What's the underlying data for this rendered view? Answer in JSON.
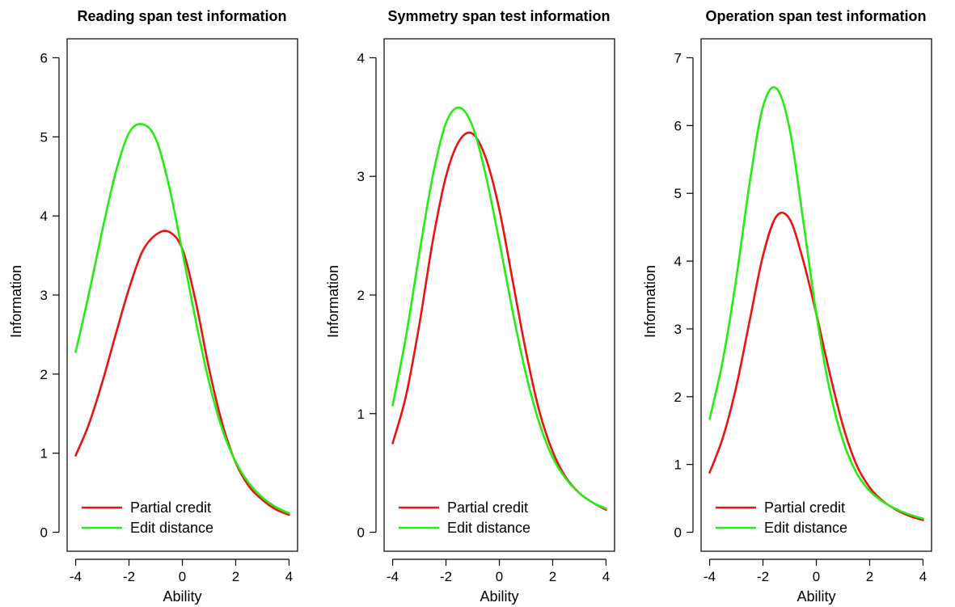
{
  "chart_data": [
    {
      "type": "line",
      "title": "Reading span test information",
      "xlabel": "Ability",
      "ylabel": "Information",
      "xlim": [
        -4,
        4
      ],
      "ylim": [
        0,
        6
      ],
      "xticks": [
        "-4",
        "-2",
        "0",
        "2",
        "4"
      ],
      "yticks": [
        "0",
        "1",
        "2",
        "3",
        "4",
        "5",
        "6"
      ],
      "legend": "bottom-left",
      "grid": false,
      "x": [
        -4,
        -3.5,
        -3,
        -2.5,
        -2,
        -1.5,
        -1,
        -0.5,
        0,
        0.5,
        1,
        1.5,
        2,
        2.5,
        3,
        3.5,
        4
      ],
      "series": [
        {
          "name": "Partial credit",
          "color": "#ee1111",
          "values": [
            0.97,
            1.37,
            1.9,
            2.5,
            3.08,
            3.55,
            3.76,
            3.8,
            3.58,
            2.92,
            2.07,
            1.37,
            0.88,
            0.58,
            0.41,
            0.29,
            0.22
          ]
        },
        {
          "name": "Edit distance",
          "color": "#22ee11",
          "values": [
            2.28,
            3.02,
            3.82,
            4.55,
            5.05,
            5.16,
            4.98,
            4.38,
            3.55,
            2.68,
            1.9,
            1.3,
            0.89,
            0.62,
            0.44,
            0.32,
            0.24
          ]
        }
      ]
    },
    {
      "type": "line",
      "title": "Symmetry span test information",
      "xlabel": "Ability",
      "ylabel": "Information",
      "xlim": [
        -4,
        4
      ],
      "ylim": [
        0,
        4
      ],
      "xticks": [
        "-4",
        "-2",
        "0",
        "2",
        "4"
      ],
      "yticks": [
        "0",
        "1",
        "2",
        "3",
        "4"
      ],
      "legend": "bottom-left",
      "grid": false,
      "x": [
        -4,
        -3.5,
        -3,
        -2.5,
        -2,
        -1.5,
        -1,
        -0.5,
        0,
        0.5,
        1,
        1.5,
        2,
        2.5,
        3,
        3.5,
        4
      ],
      "series": [
        {
          "name": "Partial credit",
          "color": "#ee1111",
          "values": [
            0.75,
            1.15,
            1.75,
            2.45,
            3.0,
            3.3,
            3.36,
            3.15,
            2.72,
            2.12,
            1.52,
            1.02,
            0.68,
            0.46,
            0.33,
            0.25,
            0.19
          ]
        },
        {
          "name": "Edit distance",
          "color": "#22ee11",
          "values": [
            1.07,
            1.65,
            2.35,
            3.0,
            3.45,
            3.58,
            3.42,
            3.0,
            2.45,
            1.86,
            1.33,
            0.92,
            0.63,
            0.45,
            0.33,
            0.25,
            0.2
          ]
        }
      ]
    },
    {
      "type": "line",
      "title": "Operation span test information",
      "xlabel": "Ability",
      "ylabel": "Information",
      "xlim": [
        -4,
        4
      ],
      "ylim": [
        0,
        7
      ],
      "xticks": [
        "-4",
        "-2",
        "0",
        "2",
        "4"
      ],
      "yticks": [
        "0",
        "1",
        "2",
        "3",
        "4",
        "5",
        "6",
        "7"
      ],
      "legend": "bottom-left",
      "grid": false,
      "x": [
        -4,
        -3.5,
        -3,
        -2.5,
        -2,
        -1.5,
        -1,
        -0.5,
        0,
        0.5,
        1,
        1.5,
        2,
        2.5,
        3,
        3.5,
        4
      ],
      "series": [
        {
          "name": "Partial credit",
          "color": "#ee1111",
          "values": [
            0.88,
            1.4,
            2.15,
            3.12,
            4.08,
            4.66,
            4.62,
            4.02,
            3.22,
            2.35,
            1.57,
            1.0,
            0.66,
            0.46,
            0.33,
            0.24,
            0.18
          ]
        },
        {
          "name": "Edit distance",
          "color": "#22ee11",
          "values": [
            1.67,
            2.55,
            3.75,
            5.15,
            6.28,
            6.55,
            5.95,
            4.62,
            3.22,
            2.1,
            1.35,
            0.88,
            0.61,
            0.45,
            0.34,
            0.26,
            0.2
          ]
        }
      ]
    }
  ]
}
